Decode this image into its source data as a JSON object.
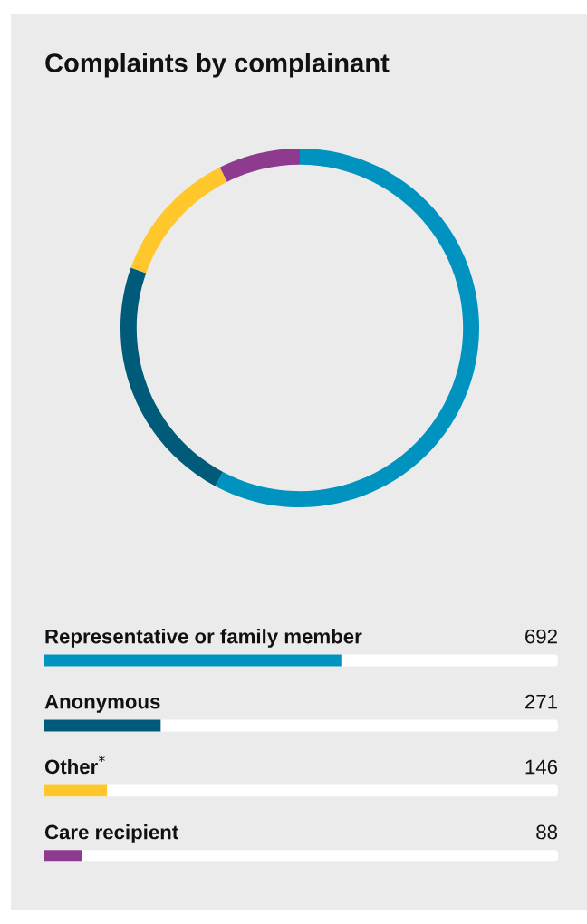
{
  "chart_data": [
    {
      "type": "donut",
      "title": "Complaints by complainant",
      "categories": [
        null,
        null,
        null,
        null
      ],
      "values": [
        57.81,
        22.64,
        12.2,
        7.35
      ],
      "colors": [
        "#0093bf",
        "#005a7a",
        "#ffc72c",
        "#8e3a8f"
      ]
    },
    {
      "type": "bar",
      "orientation": "horizontal",
      "categories": [
        "Representative or family member",
        "Anonymous",
        "Other$^{*}$",
        "Care recipient"
      ],
      "values": [
        692,
        271,
        146,
        88
      ],
      "colors": [
        "#0093bf",
        "#005a7a",
        "#ffc72c",
        "#8e3a8f"
      ],
      "xlim": [
        0,
        1197
      ],
      "data_labels": true
    }
  ]
}
